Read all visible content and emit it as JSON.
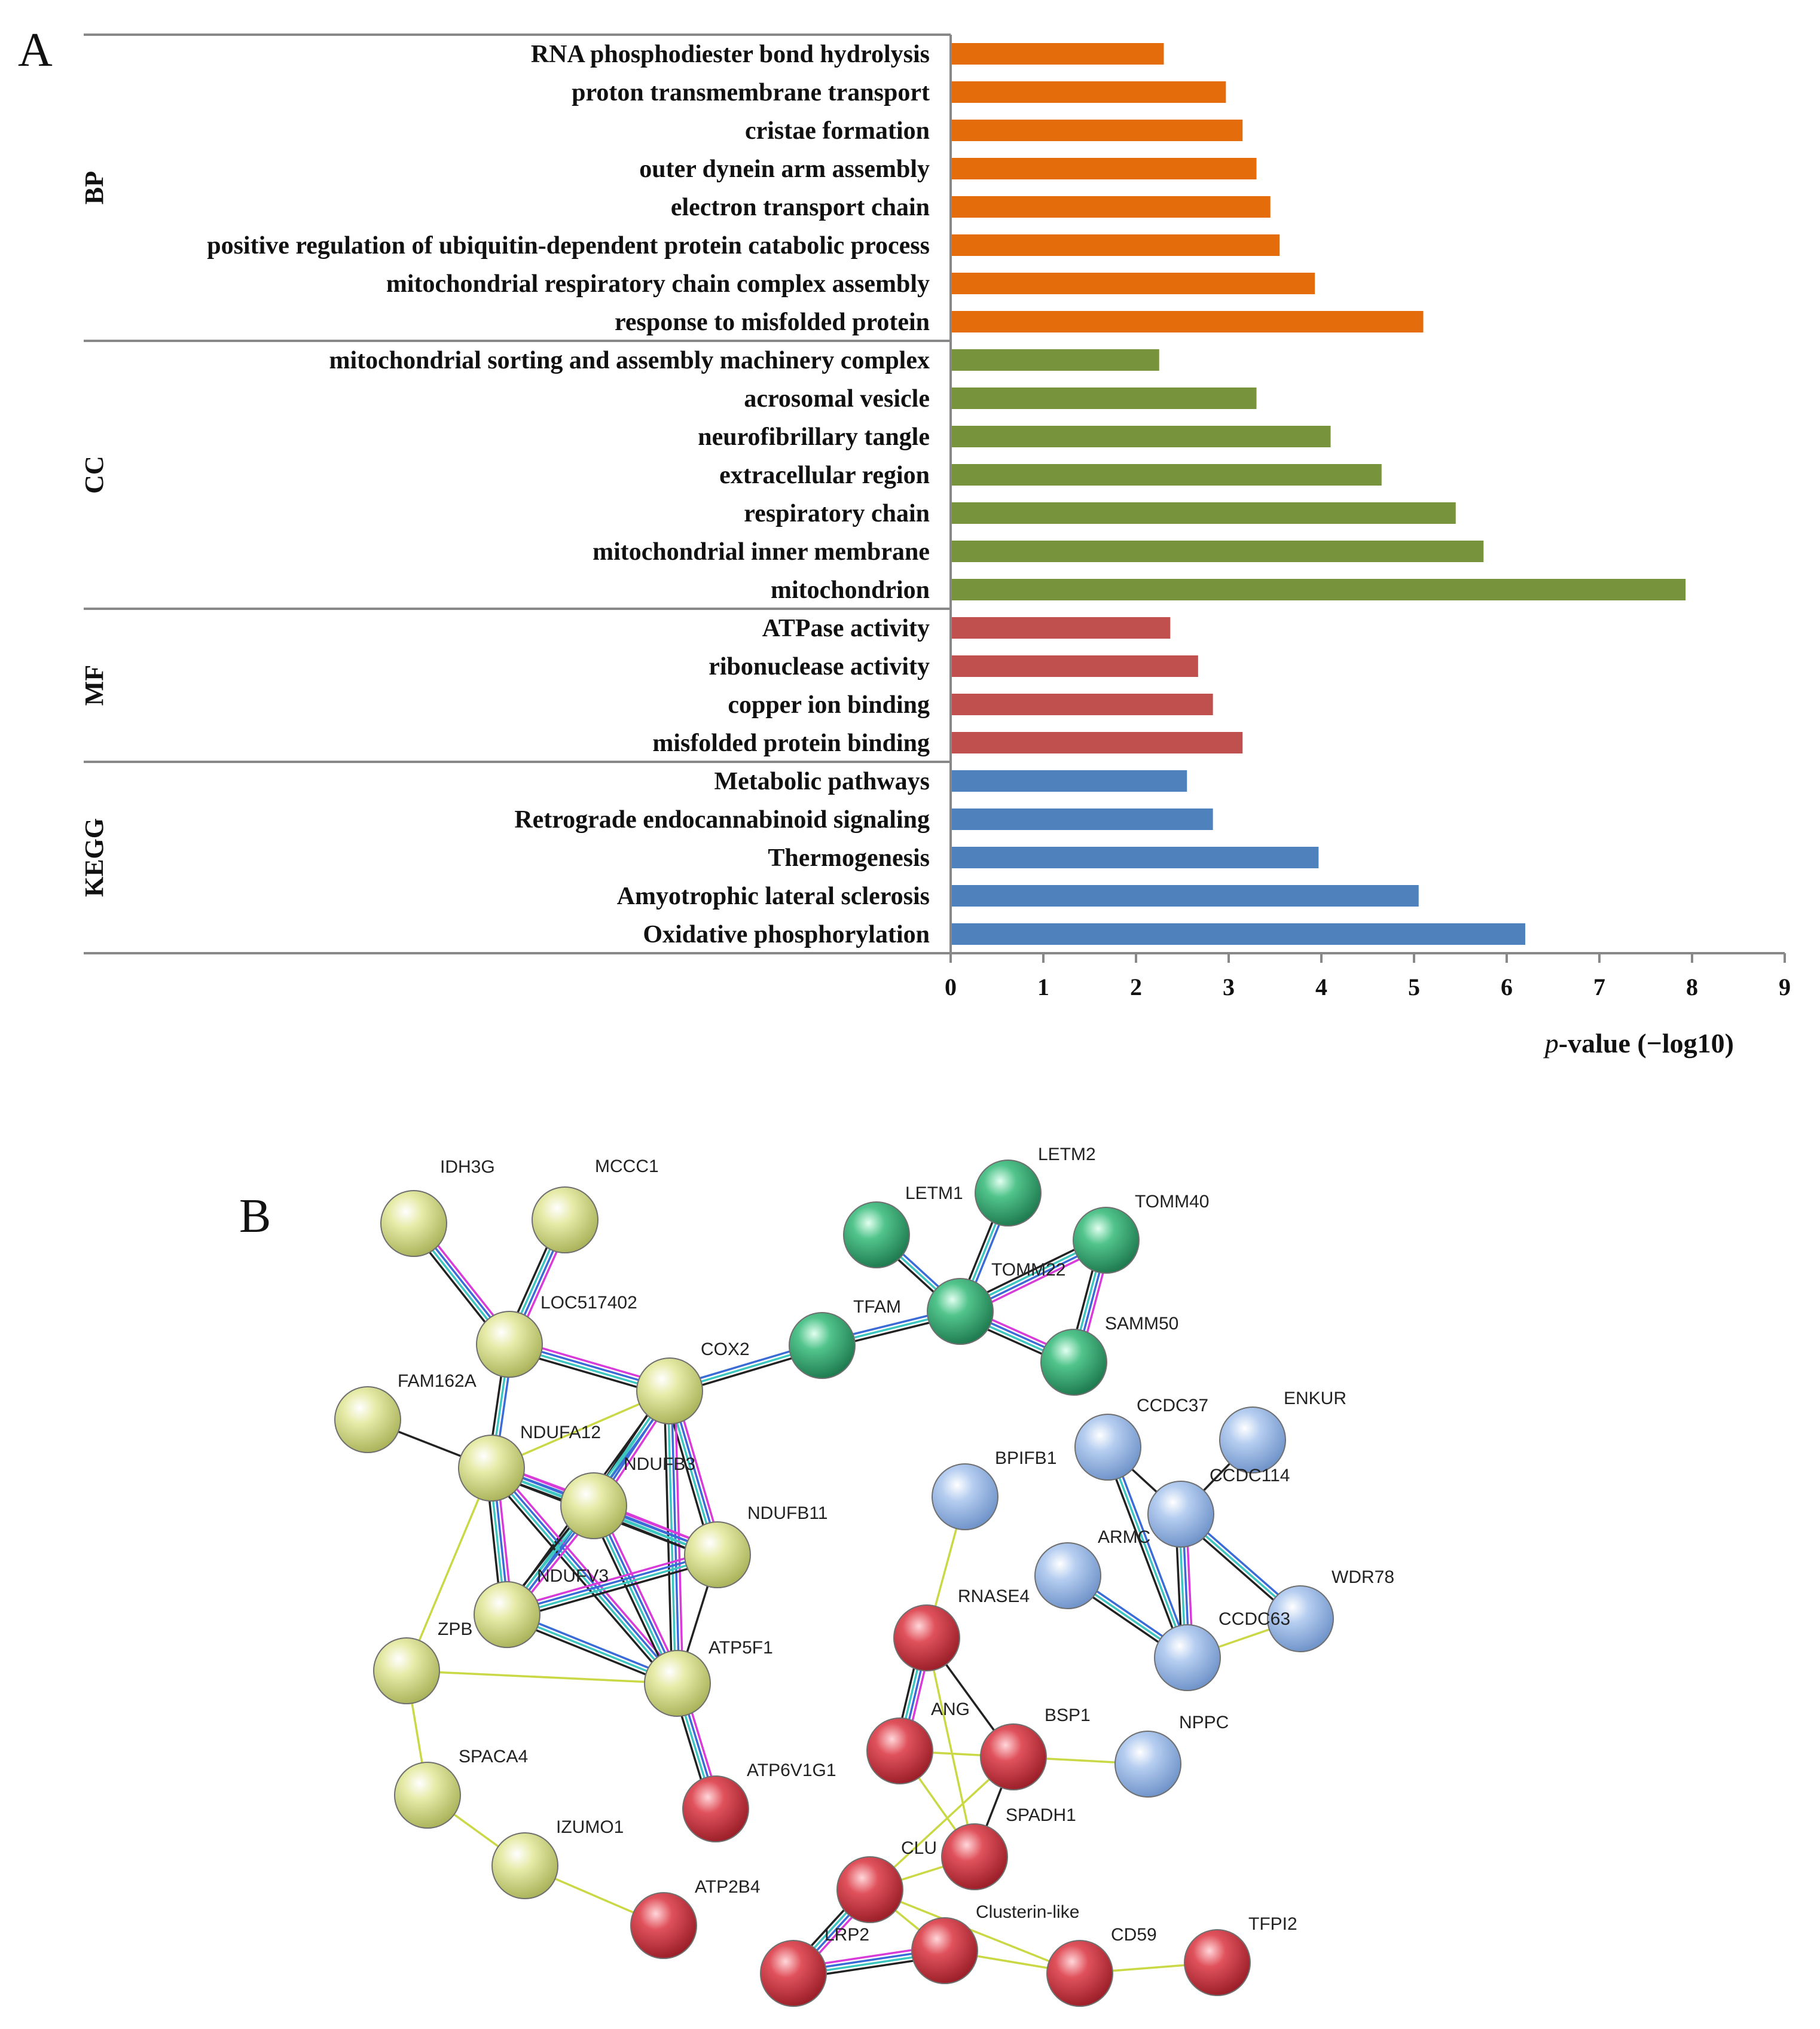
{
  "panels": {
    "a": "A",
    "b": "B"
  },
  "chart_data": {
    "type": "bar",
    "orientation": "horizontal",
    "xlabel_italic": "p",
    "xlabel_rest": "-value (−log10)",
    "xlim": [
      0,
      9
    ],
    "xticks": [
      0,
      1,
      2,
      3,
      4,
      5,
      6,
      7,
      8,
      9
    ],
    "groups": [
      {
        "name": "BP",
        "color": "#E46C0A",
        "terms": [
          {
            "label": "RNA phosphodiester bond hydrolysis",
            "value": 2.3
          },
          {
            "label": "proton transmembrane transport",
            "value": 2.97
          },
          {
            "label": "cristae formation",
            "value": 3.15
          },
          {
            "label": "outer dynein arm assembly",
            "value": 3.3
          },
          {
            "label": "electron transport chain",
            "value": 3.45
          },
          {
            "label": "positive regulation of ubiquitin-dependent protein catabolic process",
            "value": 3.55
          },
          {
            "label": "mitochondrial respiratory chain complex assembly",
            "value": 3.93
          },
          {
            "label": "response to misfolded protein",
            "value": 5.1
          }
        ]
      },
      {
        "name": "CC",
        "color": "#77933C",
        "terms": [
          {
            "label": "mitochondrial sorting and assembly machinery complex",
            "value": 2.25
          },
          {
            "label": "acrosomal vesicle",
            "value": 3.3
          },
          {
            "label": "neurofibrillary tangle",
            "value": 4.1
          },
          {
            "label": "extracellular region",
            "value": 4.65
          },
          {
            "label": "respiratory chain",
            "value": 5.45
          },
          {
            "label": "mitochondrial inner membrane",
            "value": 5.75
          },
          {
            "label": "mitochondrion",
            "value": 7.93
          }
        ]
      },
      {
        "name": "MF",
        "color": "#C0504D",
        "terms": [
          {
            "label": "ATPase activity",
            "value": 2.37
          },
          {
            "label": "ribonuclease activity",
            "value": 2.67
          },
          {
            "label": "copper ion binding",
            "value": 2.83
          },
          {
            "label": "misfolded protein binding",
            "value": 3.15
          }
        ]
      },
      {
        "name": "KEGG",
        "color": "#4F81BD",
        "terms": [
          {
            "label": "Metabolic pathways",
            "value": 2.55
          },
          {
            "label": "Retrograde endocannabinoid signaling",
            "value": 2.83
          },
          {
            "label": "Thermogenesis",
            "value": 3.97
          },
          {
            "label": "Amyotrophic lateral sclerosis",
            "value": 5.05
          },
          {
            "label": "Oxidative phosphorylation",
            "value": 6.2
          }
        ]
      }
    ]
  },
  "network": {
    "cluster_colors": {
      "yellow": "#D6DE8A",
      "green": "#3FB07A",
      "blue": "#9DBDEA",
      "red": "#D9454F"
    },
    "nodes": [
      {
        "id": "IDH3G",
        "cluster": "yellow"
      },
      {
        "id": "MCCC1",
        "cluster": "yellow"
      },
      {
        "id": "LOC517402",
        "cluster": "yellow"
      },
      {
        "id": "FAM162A",
        "cluster": "yellow"
      },
      {
        "id": "COX2",
        "cluster": "yellow"
      },
      {
        "id": "NDUFA12",
        "cluster": "yellow"
      },
      {
        "id": "NDUFB3",
        "cluster": "yellow"
      },
      {
        "id": "NDUFB11",
        "cluster": "yellow"
      },
      {
        "id": "NDUFV3",
        "cluster": "yellow"
      },
      {
        "id": "ZPB",
        "cluster": "yellow"
      },
      {
        "id": "ATP5F1",
        "cluster": "yellow"
      },
      {
        "id": "SPACA4",
        "cluster": "yellow"
      },
      {
        "id": "IZUMO1",
        "cluster": "yellow"
      },
      {
        "id": "LETM2",
        "cluster": "green"
      },
      {
        "id": "LETM1",
        "cluster": "green"
      },
      {
        "id": "TOMM40",
        "cluster": "green"
      },
      {
        "id": "TOMM22",
        "cluster": "green"
      },
      {
        "id": "TFAM",
        "cluster": "green"
      },
      {
        "id": "SAMM50",
        "cluster": "green"
      },
      {
        "id": "CCDC37",
        "cluster": "blue"
      },
      {
        "id": "ENKUR",
        "cluster": "blue"
      },
      {
        "id": "BPIFB1",
        "cluster": "blue"
      },
      {
        "id": "CCDC114",
        "cluster": "blue"
      },
      {
        "id": "ARMC",
        "cluster": "blue"
      },
      {
        "id": "WDR78",
        "cluster": "blue"
      },
      {
        "id": "CCDC63",
        "cluster": "blue"
      },
      {
        "id": "NPPC",
        "cluster": "blue"
      },
      {
        "id": "RNASE4",
        "cluster": "red"
      },
      {
        "id": "ANG",
        "cluster": "red"
      },
      {
        "id": "BSP1",
        "cluster": "red"
      },
      {
        "id": "ATP6V1G1",
        "cluster": "red"
      },
      {
        "id": "SPADH1",
        "cluster": "red"
      },
      {
        "id": "CLU",
        "cluster": "red"
      },
      {
        "id": "ATP2B4",
        "cluster": "red"
      },
      {
        "id": "Clusterin-like",
        "cluster": "red"
      },
      {
        "id": "LRP2",
        "cluster": "red"
      },
      {
        "id": "CD59",
        "cluster": "red"
      },
      {
        "id": "TFPI2",
        "cluster": "red"
      }
    ],
    "edges": [
      {
        "a": "IDH3G",
        "b": "LOC517402",
        "kind": "multi"
      },
      {
        "a": "MCCC1",
        "b": "LOC517402",
        "kind": "multi"
      },
      {
        "a": "LOC517402",
        "b": "COX2",
        "kind": "multi"
      },
      {
        "a": "LOC517402",
        "b": "NDUFA12",
        "kind": "triple"
      },
      {
        "a": "FAM162A",
        "b": "NDUFA12",
        "kind": "black"
      },
      {
        "a": "COX2",
        "b": "NDUFA12",
        "kind": "yellow"
      },
      {
        "a": "COX2",
        "b": "NDUFB3",
        "kind": "multi"
      },
      {
        "a": "COX2",
        "b": "NDUFB11",
        "kind": "multi"
      },
      {
        "a": "COX2",
        "b": "NDUFV3",
        "kind": "triple"
      },
      {
        "a": "COX2",
        "b": "ATP5F1",
        "kind": "multi"
      },
      {
        "a": "COX2",
        "b": "TFAM",
        "kind": "triple"
      },
      {
        "a": "NDUFA12",
        "b": "NDUFB3",
        "kind": "multi"
      },
      {
        "a": "NDUFA12",
        "b": "NDUFV3",
        "kind": "multi"
      },
      {
        "a": "NDUFA12",
        "b": "NDUFB11",
        "kind": "multi"
      },
      {
        "a": "NDUFA12",
        "b": "ATP5F1",
        "kind": "multi"
      },
      {
        "a": "NDUFA12",
        "b": "ZPB",
        "kind": "yellow"
      },
      {
        "a": "NDUFB3",
        "b": "NDUFB11",
        "kind": "multi"
      },
      {
        "a": "NDUFB3",
        "b": "NDUFV3",
        "kind": "multi"
      },
      {
        "a": "NDUFB3",
        "b": "ATP5F1",
        "kind": "multi"
      },
      {
        "a": "NDUFV3",
        "b": "NDUFB11",
        "kind": "multi"
      },
      {
        "a": "NDUFV3",
        "b": "ATP5F1",
        "kind": "triple"
      },
      {
        "a": "NDUFB11",
        "b": "ATP5F1",
        "kind": "black"
      },
      {
        "a": "ZPB",
        "b": "ATP5F1",
        "kind": "yellow"
      },
      {
        "a": "ZPB",
        "b": "SPACA4",
        "kind": "yellow"
      },
      {
        "a": "SPACA4",
        "b": "IZUMO1",
        "kind": "yellow"
      },
      {
        "a": "IZUMO1",
        "b": "ATP2B4",
        "kind": "yellow"
      },
      {
        "a": "ATP5F1",
        "b": "ATP6V1G1",
        "kind": "multi"
      },
      {
        "a": "TFAM",
        "b": "TOMM22",
        "kind": "triple"
      },
      {
        "a": "LETM1",
        "b": "TOMM22",
        "kind": "triple"
      },
      {
        "a": "LETM2",
        "b": "TOMM22",
        "kind": "triple"
      },
      {
        "a": "TOMM40",
        "b": "TOMM22",
        "kind": "multi"
      },
      {
        "a": "TOMM40",
        "b": "SAMM50",
        "kind": "multi"
      },
      {
        "a": "TOMM22",
        "b": "SAMM50",
        "kind": "multi"
      },
      {
        "a": "CCDC37",
        "b": "CCDC114",
        "kind": "black"
      },
      {
        "a": "CCDC37",
        "b": "CCDC63",
        "kind": "triple"
      },
      {
        "a": "ENKUR",
        "b": "CCDC114",
        "kind": "black"
      },
      {
        "a": "CCDC114",
        "b": "CCDC63",
        "kind": "multi"
      },
      {
        "a": "CCDC114",
        "b": "WDR78",
        "kind": "triple"
      },
      {
        "a": "ARMC",
        "b": "CCDC63",
        "kind": "triple"
      },
      {
        "a": "WDR78",
        "b": "CCDC63",
        "kind": "yellow"
      },
      {
        "a": "BPIFB1",
        "b": "RNASE4",
        "kind": "yellow"
      },
      {
        "a": "RNASE4",
        "b": "ANG",
        "kind": "multi"
      },
      {
        "a": "RNASE4",
        "b": "BSP1",
        "kind": "black"
      },
      {
        "a": "RNASE4",
        "b": "SPADH1",
        "kind": "yellow"
      },
      {
        "a": "ANG",
        "b": "BSP1",
        "kind": "yellow"
      },
      {
        "a": "ANG",
        "b": "SPADH1",
        "kind": "yellow"
      },
      {
        "a": "BSP1",
        "b": "NPPC",
        "kind": "yellow"
      },
      {
        "a": "BSP1",
        "b": "SPADH1",
        "kind": "black"
      },
      {
        "a": "BSP1",
        "b": "CLU",
        "kind": "yellow"
      },
      {
        "a": "SPADH1",
        "b": "CLU",
        "kind": "yellow"
      },
      {
        "a": "CLU",
        "b": "LRP2",
        "kind": "multi"
      },
      {
        "a": "CLU",
        "b": "Clusterin-like",
        "kind": "yellow"
      },
      {
        "a": "CLU",
        "b": "CD59",
        "kind": "yellow"
      },
      {
        "a": "LRP2",
        "b": "Clusterin-like",
        "kind": "multi"
      },
      {
        "a": "Clusterin-like",
        "b": "CD59",
        "kind": "yellow"
      },
      {
        "a": "CD59",
        "b": "TFPI2",
        "kind": "yellow"
      }
    ]
  }
}
